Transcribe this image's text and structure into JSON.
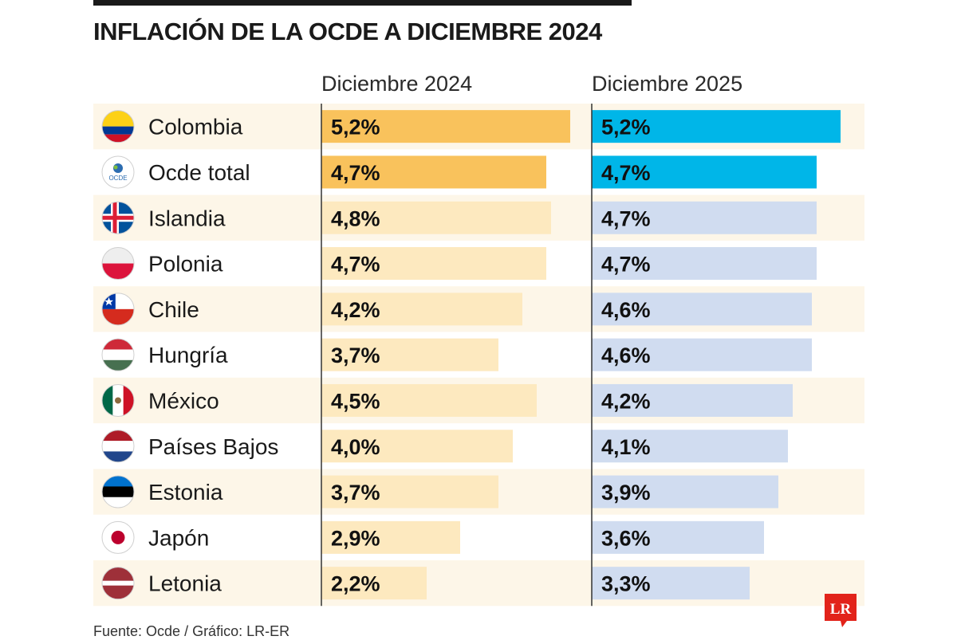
{
  "title": "INFLACIÓN DE LA OCDE A DICIEMBRE 2024",
  "footer": "Fuente: Ocde / Gráfico: LR-ER",
  "logo": "LR",
  "colors": {
    "row_band": "#fdf6e8",
    "col1_highlight": "#f9c25c",
    "col1_light": "#fde9bf",
    "col2_highlight": "#00b6e8",
    "col2_light": "#d0dcf0"
  },
  "chart_data": {
    "type": "bar",
    "title": "INFLACIÓN DE LA OCDE A DICIEMBRE 2024",
    "categories": [
      "Colombia",
      "Ocde total",
      "Islandia",
      "Polonia",
      "Chile",
      "Hungría",
      "México",
      "Países Bajos",
      "Estonia",
      "Japón",
      "Letonia"
    ],
    "flags": [
      "colombia-flag-icon",
      "ocde-logo-icon",
      "iceland-flag-icon",
      "poland-flag-icon",
      "chile-flag-icon",
      "hungary-flag-icon",
      "mexico-flag-icon",
      "netherlands-flag-icon",
      "estonia-flag-icon",
      "japan-flag-icon",
      "latvia-flag-icon"
    ],
    "highlighted": [
      true,
      true,
      false,
      false,
      false,
      false,
      false,
      false,
      false,
      false,
      false
    ],
    "series": [
      {
        "name": "Diciembre 2024",
        "values": [
          5.2,
          4.7,
          4.8,
          4.7,
          4.2,
          3.7,
          4.5,
          4.0,
          3.7,
          2.9,
          2.2
        ],
        "labels": [
          "5,2%",
          "4,7%",
          "4,8%",
          "4,7%",
          "4,2%",
          "3,7%",
          "4,5%",
          "4,0%",
          "3,7%",
          "2,9%",
          "2,2%"
        ]
      },
      {
        "name": "Diciembre 2025",
        "values": [
          5.2,
          4.7,
          4.7,
          4.7,
          4.6,
          4.6,
          4.2,
          4.1,
          3.9,
          3.6,
          3.3
        ],
        "labels": [
          "5,2%",
          "4,7%",
          "4,7%",
          "4,7%",
          "4,6%",
          "4,6%",
          "4,2%",
          "4,1%",
          "3,9%",
          "3,6%",
          "3,3%"
        ]
      }
    ]
  }
}
